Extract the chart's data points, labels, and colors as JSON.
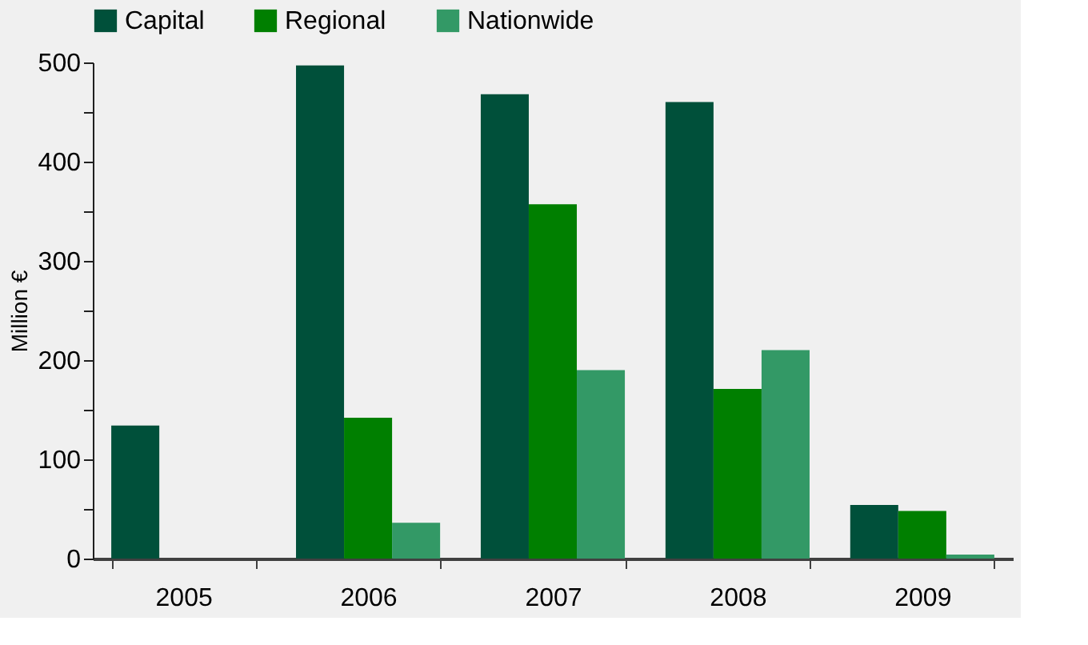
{
  "chart_data": {
    "type": "bar",
    "ylabel": "Million €",
    "categories": [
      "2005",
      "2006",
      "2007",
      "2008",
      "2009"
    ],
    "series": [
      {
        "name": "Capital",
        "color": "#00503a",
        "values": [
          134,
          497,
          468,
          460,
          54
        ]
      },
      {
        "name": "Regional",
        "color": "#007f00",
        "values": [
          null,
          142,
          357,
          171,
          48
        ]
      },
      {
        "name": "Nationwide",
        "color": "#339966",
        "values": [
          null,
          36,
          190,
          210,
          4
        ]
      }
    ],
    "ylim": [
      0,
      500
    ],
    "yticks": [
      0,
      {
        "value": 50,
        "label": null
      },
      100,
      {
        "value": 150,
        "label": null
      },
      200,
      {
        "value": 250,
        "label": null
      },
      300,
      {
        "value": 350,
        "label": null
      },
      400,
      {
        "value": 450,
        "label": null
      },
      500
    ],
    "grid": false,
    "legend": "top"
  }
}
